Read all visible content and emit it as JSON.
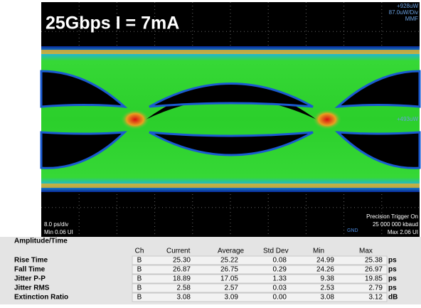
{
  "screen": {
    "title": "25Gbps I = 7mA",
    "top_right": [
      "+928uW",
      "87.0uW/Div",
      "MMF"
    ],
    "mid_right": "+493uW",
    "bottom_left": [
      "8.0 ps/div",
      "Min 0.06 UI"
    ],
    "bottom_right": [
      "Precision Trigger On",
      "25 000 000 kbaud",
      "Max 2.06 UI"
    ],
    "ground": "GND"
  },
  "table": {
    "title": "Amplitude/Time",
    "headers": [
      "Ch",
      "Current",
      "Average",
      "Std Dev",
      "Min",
      "Max"
    ],
    "rows": [
      [
        "Rise Time",
        "B",
        "25.30",
        "25.22",
        "0.08",
        "24.99",
        "25.38",
        "ps"
      ],
      [
        "Fall Time",
        "B",
        "26.87",
        "26.75",
        "0.29",
        "24.26",
        "26.97",
        "ps"
      ],
      [
        "Jitter P-P",
        "B",
        "18.89",
        "17.05",
        "1.33",
        "9.38",
        "19.85",
        "ps"
      ],
      [
        "Jitter RMS",
        "B",
        "2.58",
        "2.57",
        "0.03",
        "2.53",
        "2.79",
        "ps"
      ],
      [
        "Extinction Ratio",
        "B",
        "3.08",
        "3.09",
        "0.00",
        "3.08",
        "3.12",
        "dB"
      ]
    ]
  }
}
